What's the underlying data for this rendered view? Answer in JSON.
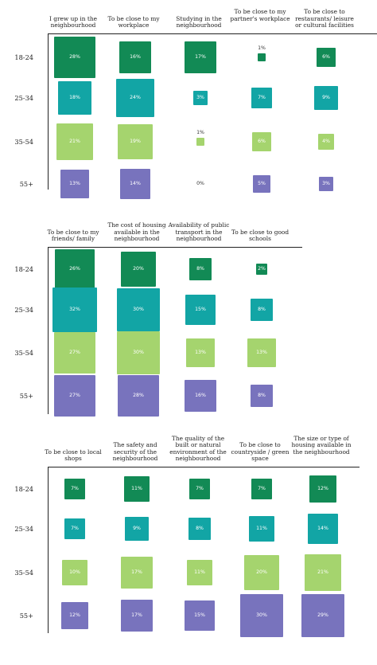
{
  "colors": {
    "18-24": "#128a55",
    "25-34": "#12a5a5",
    "35-54": "#a5d46e",
    "55+": "#7873bd"
  },
  "chart_data": [
    {
      "type": "heatmap",
      "rows": [
        "18-24",
        "25-34",
        "35-54",
        "55+"
      ],
      "columns": [
        "I grew up in the neighbourhood",
        "To be close to my workplace",
        "Studying in the neighbourhood",
        "To be close to my partner's workplace",
        "To be close to restaurants/ leisure or cultural facilities"
      ],
      "values": [
        [
          28,
          16,
          17,
          1,
          6
        ],
        [
          18,
          24,
          3,
          7,
          9
        ],
        [
          21,
          19,
          1,
          6,
          4
        ],
        [
          13,
          14,
          0,
          5,
          3
        ]
      ],
      "unit": "%"
    },
    {
      "type": "heatmap",
      "rows": [
        "18-24",
        "25-34",
        "35-54",
        "55+"
      ],
      "columns": [
        "To be close to my friends/ family",
        "The cost of housing available in the neighbourhood",
        "Availability of public transport in the neighbourhood",
        "To be close to good schools"
      ],
      "values": [
        [
          26,
          20,
          8,
          2
        ],
        [
          32,
          30,
          15,
          8
        ],
        [
          27,
          30,
          13,
          13
        ],
        [
          27,
          28,
          16,
          8
        ]
      ],
      "unit": "%"
    },
    {
      "type": "heatmap",
      "rows": [
        "18-24",
        "25-34",
        "35-54",
        "55+"
      ],
      "columns": [
        "To be close to local shops",
        "The safety and security of the neighbourhood",
        "The quality of the built or natural environment of the neighbourhood",
        "To be close to countryside / green space",
        "The size or type of housing available in the neighbourhood"
      ],
      "values": [
        [
          7,
          11,
          7,
          7,
          12
        ],
        [
          7,
          9,
          8,
          11,
          14
        ],
        [
          10,
          17,
          11,
          20,
          21
        ],
        [
          12,
          17,
          15,
          30,
          29
        ]
      ],
      "unit": "%"
    }
  ]
}
